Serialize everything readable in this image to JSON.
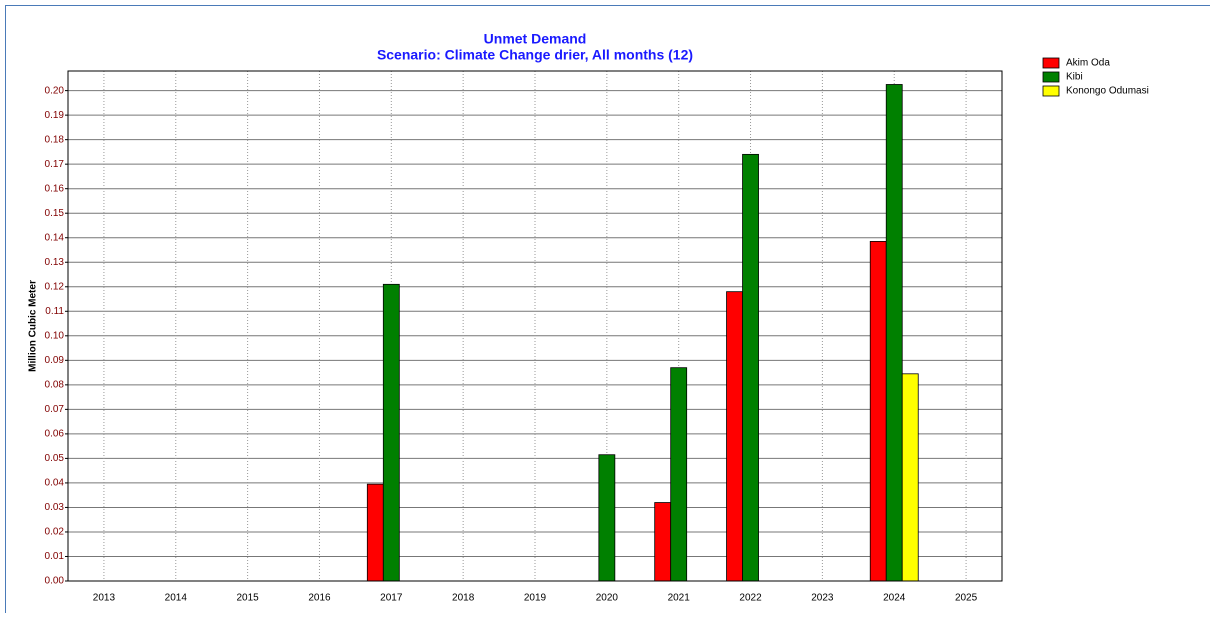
{
  "chart_data": {
    "type": "bar",
    "title": "Unmet Demand",
    "subtitle": "Scenario: Climate Change drier,  All months (12)",
    "y_label": "Million Cubic Meter",
    "categories": [
      "2013",
      "2014",
      "2015",
      "2016",
      "2017",
      "2018",
      "2019",
      "2020",
      "2021",
      "2022",
      "2023",
      "2024",
      "2025"
    ],
    "series": [
      {
        "name": "Akim Oda",
        "color": "#ff0000",
        "values": [
          0,
          0,
          0,
          0,
          0.0395,
          0,
          0,
          0,
          0.032,
          0.118,
          0,
          0.1385,
          0
        ]
      },
      {
        "name": "Kibi",
        "color": "#008000",
        "values": [
          0,
          0,
          0,
          0,
          0.121,
          0,
          0,
          0.0515,
          0.087,
          0.174,
          0,
          0.2025,
          0
        ]
      },
      {
        "name": "Konongo Odumasi",
        "color": "#ffff00",
        "values": [
          0,
          0,
          0,
          0,
          0,
          0,
          0,
          0,
          0,
          0,
          0,
          0.0845,
          0
        ]
      }
    ],
    "ylim": [
      0,
      0.208
    ],
    "yticks": [
      {
        "value": 0,
        "label": "0.00"
      },
      0.01,
      0.02,
      0.03,
      0.04,
      0.05,
      0.06,
      0.07,
      0.08,
      0.09,
      {
        "value": 0.1,
        "label": "0.10"
      },
      0.11,
      0.12,
      0.13,
      0.14,
      0.15,
      0.16,
      0.17,
      0.18,
      0.19,
      {
        "value": 0.2,
        "label": "0.20"
      }
    ],
    "grid": true
  }
}
